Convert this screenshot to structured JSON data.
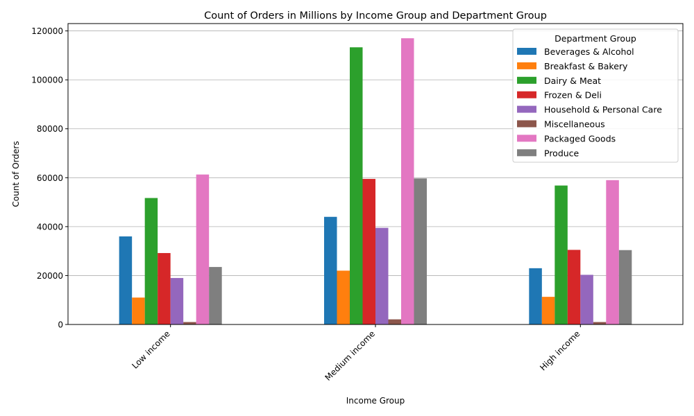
{
  "chart_data": {
    "type": "bar",
    "title": "Count of Orders in Millions by Income Group and Department Group",
    "xlabel": "Income Group",
    "ylabel": "Count of Orders",
    "ylim": [
      0,
      123000
    ],
    "yticks": [
      0,
      20000,
      40000,
      60000,
      80000,
      100000,
      120000
    ],
    "grid": "y",
    "legend_title": "Department Group",
    "legend_position": "top-right",
    "categories": [
      "Low income",
      "Medium income",
      "High income"
    ],
    "series": [
      {
        "name": "Beverages & Alcohol",
        "color": "#1f77b4",
        "values": [
          36000,
          44000,
          23000
        ]
      },
      {
        "name": "Breakfast & Bakery",
        "color": "#ff7f0e",
        "values": [
          11000,
          22000,
          11300
        ]
      },
      {
        "name": "Dairy & Meat",
        "color": "#2ca02c",
        "values": [
          51700,
          113300,
          56800
        ]
      },
      {
        "name": "Frozen & Deli",
        "color": "#d62728",
        "values": [
          29200,
          59500,
          30500
        ]
      },
      {
        "name": "Household & Personal Care",
        "color": "#9467bd",
        "values": [
          19000,
          39500,
          20300
        ]
      },
      {
        "name": "Miscellaneous",
        "color": "#8c564b",
        "values": [
          1000,
          2100,
          1000
        ]
      },
      {
        "name": "Packaged Goods",
        "color": "#e377c2",
        "values": [
          61300,
          117000,
          59000
        ]
      },
      {
        "name": "Produce",
        "color": "#7f7f7f",
        "values": [
          23500,
          59700,
          30400
        ]
      }
    ]
  }
}
